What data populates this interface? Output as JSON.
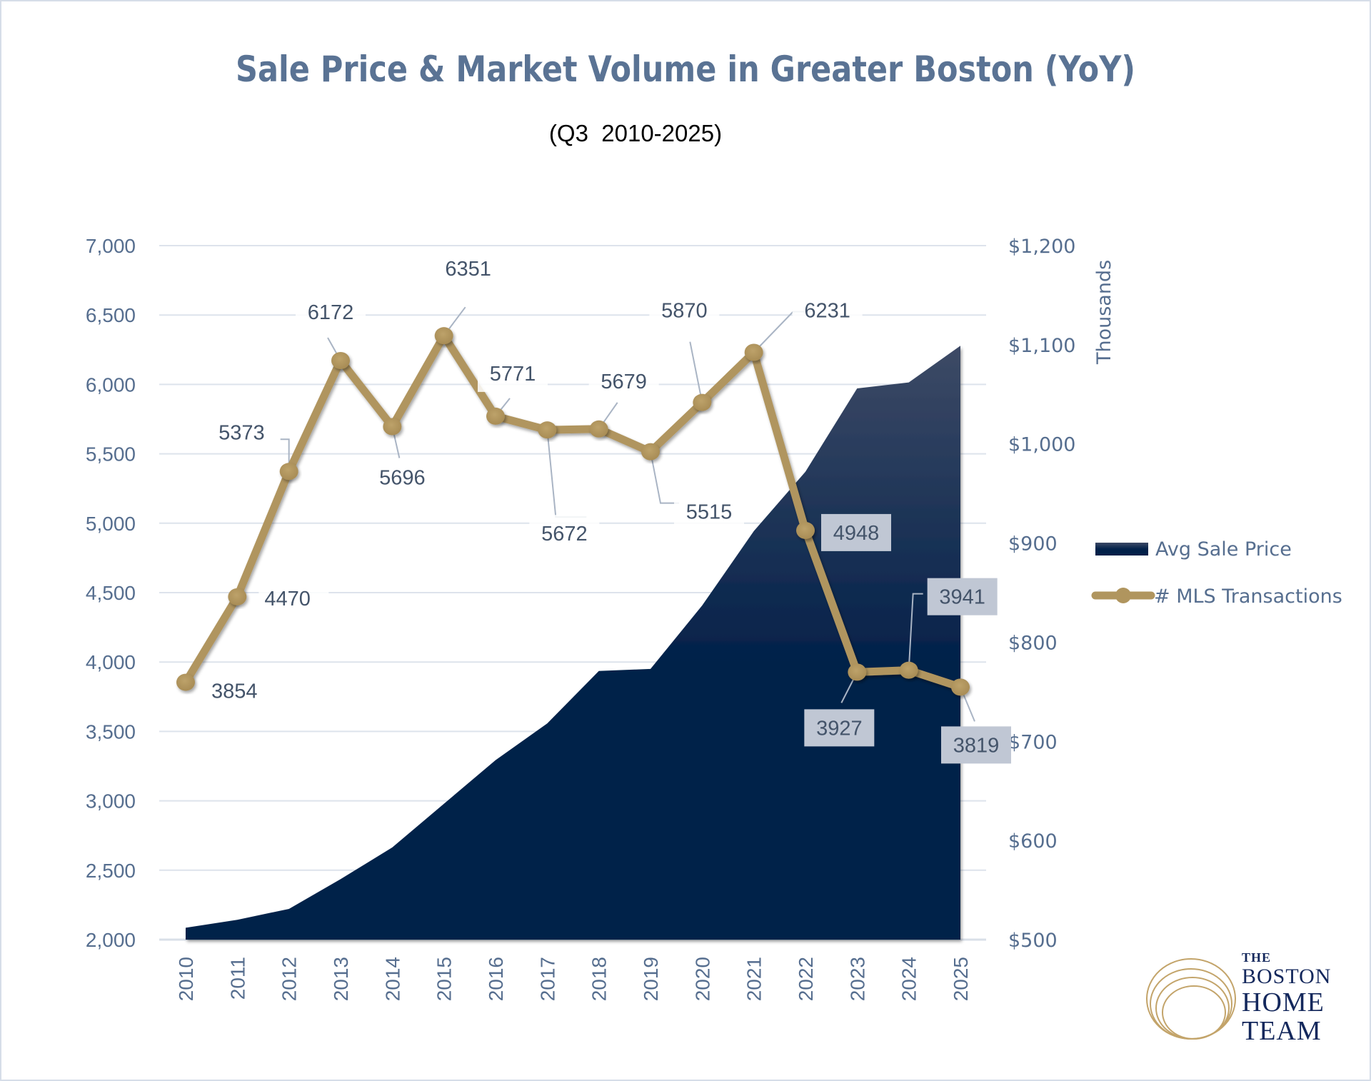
{
  "chart_data": {
    "type": "area+line",
    "title": "Sale Price & Market Volume in Greater Boston (YoY)",
    "subtitle": "(Q3  2010-2025)",
    "categories": [
      "2010",
      "2011",
      "2012",
      "2013",
      "2014",
      "2015",
      "2016",
      "2017",
      "2018",
      "2019",
      "2020",
      "2021",
      "2022",
      "2023",
      "2024",
      "2025"
    ],
    "series": [
      {
        "name": "Avg Sale Price",
        "type": "area",
        "axis": "right",
        "unit": "thousands USD",
        "color_top": "#3d4a66",
        "color_bottom": "#012049",
        "values": [
          512,
          520,
          531,
          561,
          593,
          637,
          681,
          718,
          771,
          773,
          837,
          912,
          972,
          1056,
          1062,
          1099
        ]
      },
      {
        "name": "# MLS Transactions",
        "type": "line",
        "axis": "left",
        "color": "#b0955e",
        "values": [
          3854,
          4470,
          5373,
          6172,
          5696,
          6351,
          5771,
          5672,
          5679,
          5515,
          5870,
          6231,
          4948,
          3927,
          3941,
          3819
        ],
        "labels": [
          "3854",
          "4470",
          "5373",
          "6172",
          "5696",
          "6351",
          "5771",
          "5672",
          "5679",
          "5515",
          "5870",
          "6231",
          "4948",
          "3927",
          "3941",
          "3819"
        ]
      }
    ],
    "y_left": {
      "range": [
        2000,
        7000
      ],
      "ticks": [
        "2,000",
        "2,500",
        "3,000",
        "3,500",
        "4,000",
        "4,500",
        "5,000",
        "5,500",
        "6,000",
        "6,500",
        "7,000"
      ],
      "tick_values": [
        2000,
        2500,
        3000,
        3500,
        4000,
        4500,
        5000,
        5500,
        6000,
        6500,
        7000
      ]
    },
    "y_right": {
      "label": "Thousands",
      "range": [
        500,
        1200
      ],
      "ticks": [
        "$500",
        "$600",
        "$700",
        "$800",
        "$900",
        "$1,000",
        "$1,100",
        "$1,200"
      ],
      "tick_values": [
        500,
        600,
        700,
        800,
        900,
        1000,
        1100,
        1200
      ]
    },
    "grid": true,
    "legend": {
      "position": "right",
      "entries": [
        "Avg Sale Price",
        "# MLS Transactions"
      ]
    }
  },
  "logo": {
    "line1": "THE",
    "line2": "BOSTON",
    "line3": "HOME",
    "line4": "TEAM",
    "ring_color": "#c3a46a",
    "text_color": "#14285c"
  }
}
